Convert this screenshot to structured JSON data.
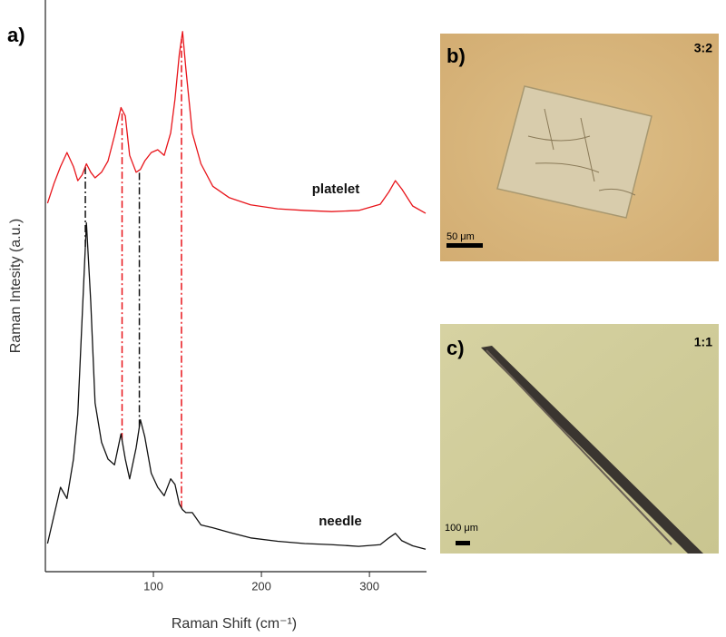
{
  "chart_data": {
    "type": "line",
    "label": "a)",
    "xlabel": "Raman Shift (cm⁻¹)",
    "ylabel": "Raman Intesity (a.u.)",
    "x": [
      2,
      8,
      14,
      20,
      26,
      30,
      34,
      38,
      42,
      46,
      52,
      58,
      64,
      70,
      74,
      78,
      84,
      88,
      92,
      98,
      104,
      110,
      116,
      120,
      124,
      127,
      130,
      136,
      144,
      155,
      170,
      190,
      215,
      240,
      265,
      290,
      310,
      318,
      324,
      330,
      340,
      352
    ],
    "series": [
      {
        "name": "needle",
        "color": "#111111",
        "values": [
          5,
          10,
          15,
          13,
          20,
          28,
          45,
          62,
          48,
          30,
          23,
          20,
          19,
          24.5,
          20,
          16.5,
          22,
          27,
          24,
          17.5,
          15,
          13.5,
          16.5,
          15.5,
          12,
          11,
          10.5,
          10.5,
          8.3,
          7.8,
          7,
          6,
          5.4,
          5,
          4.8,
          4.5,
          4.8,
          6,
          6.8,
          5.5,
          4.6,
          4
        ]
      },
      {
        "name": "platelet",
        "color": "#e8141a",
        "values": [
          65.5,
          69,
          72,
          74.5,
          72,
          69.5,
          70.5,
          72.5,
          71,
          70,
          71,
          73,
          77.5,
          82.5,
          81,
          74,
          71,
          71.5,
          73,
          74.5,
          75,
          74,
          78,
          84,
          92,
          96,
          89.5,
          78,
          72.5,
          68.5,
          66.5,
          65.2,
          64.5,
          64.2,
          64,
          64.2,
          65.3,
          67.5,
          69.5,
          68,
          65,
          63.7
        ]
      }
    ],
    "reference_lines": [
      {
        "x": 37,
        "color": "#111111"
      },
      {
        "x": 71,
        "color": "#e8141a"
      },
      {
        "x": 87,
        "color": "#111111"
      },
      {
        "x": 126,
        "color": "#e8141a"
      }
    ],
    "xlim": [
      0,
      352
    ],
    "xticks": [
      100,
      200,
      300
    ],
    "ylim": [
      0,
      100
    ]
  },
  "panels": [
    {
      "label": "b)",
      "ratio": "3:2",
      "scale_bar": "50 μm"
    },
    {
      "label": "c)",
      "ratio": "1:1",
      "scale_bar": "100 μm"
    }
  ]
}
